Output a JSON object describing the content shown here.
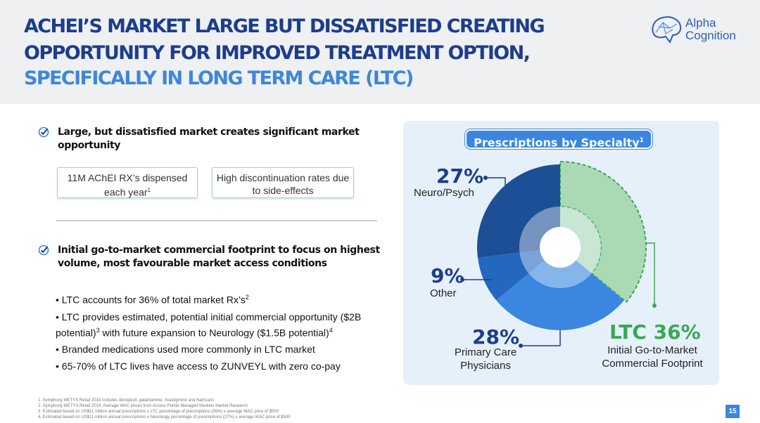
{
  "header": {
    "title_line1": "ACHEI’S MARKET LARGE BUT DISSATISFIED CREATING",
    "title_line2": "OPPORTUNITY FOR IMPROVED TREATMENT OPTION,",
    "title_line3": "SPECIFICALLY IN LONG TERM CARE (LTC)",
    "logo_line1": "Alpha",
    "logo_line2": "Cognition"
  },
  "colors": {
    "title_dark": "#1d3d8c",
    "title_light": "#3d87dc",
    "accent": "#3a86e0",
    "green": "#3aa852"
  },
  "left": {
    "bullet1": "Large, but dissatisfied market creates significant market opportunity",
    "callout1_main": "11M AChEI RX’s dispensed each year",
    "callout1_sup": "1",
    "callout2": "High discontinuation rates due to side-effects",
    "bullet2": "Initial go-to-market commercial footprint to focus on highest volume, most favourable market access conditions",
    "items": [
      {
        "text": "• LTC accounts for 36% of total market Rx’s",
        "sup": "2"
      },
      {
        "text": "• LTC provides estimated, potential initial commercial opportunity ($2B potential)",
        "sup": "3",
        "text_b": " with future expansion to Neurology ($1.5B potential)",
        "sup_b": "4"
      },
      {
        "text": "• Branded medications used more commonly in LTC market"
      },
      {
        "text": "• 65-70% of LTC lives have access to ZUNVEYL with zero co-pay"
      }
    ],
    "check_icon": "check-circle-icon"
  },
  "chart_data": {
    "type": "pie",
    "title": "Prescriptions by Specialty",
    "title_sup": "1",
    "categories": [
      "LTC",
      "Primary Care Physicians",
      "Other",
      "Neuro/Psych"
    ],
    "values": [
      36,
      28,
      9,
      27
    ],
    "labels": {
      "neuro_pct": "27%",
      "neuro_name": "Neuro/Psych",
      "other_pct": "9%",
      "other_name": "Other",
      "pcp_pct": "28%",
      "pcp_line1": "Primary Care",
      "pcp_line2": "Physicians",
      "ltc_pct": "LTC 36%",
      "ltc_line1": "Initial Go-to-Market",
      "ltc_line2": "Commercial Footprint"
    },
    "colors": [
      "#a9dab5",
      "#3a86e0",
      "#2467be",
      "#1d4f96"
    ]
  },
  "footnotes": [
    "1. Symphony METYS Retail 2019 includes donepezil, galantamine, rivastigmine and Namzaric",
    "2. Symphony METYS Retail 2019; Average WAC prices from Access Pointe Managed Markets Market Research",
    "3. Estimated based on US$11 million annual prescriptions x LTC percentage of prescriptions (36%) x average WAC price of $500",
    "4. Estimated based on US$11 million annual prescriptions x Neurology percentage of prescriptions (27%) x average WAC price of $500"
  ],
  "page_number": "15"
}
